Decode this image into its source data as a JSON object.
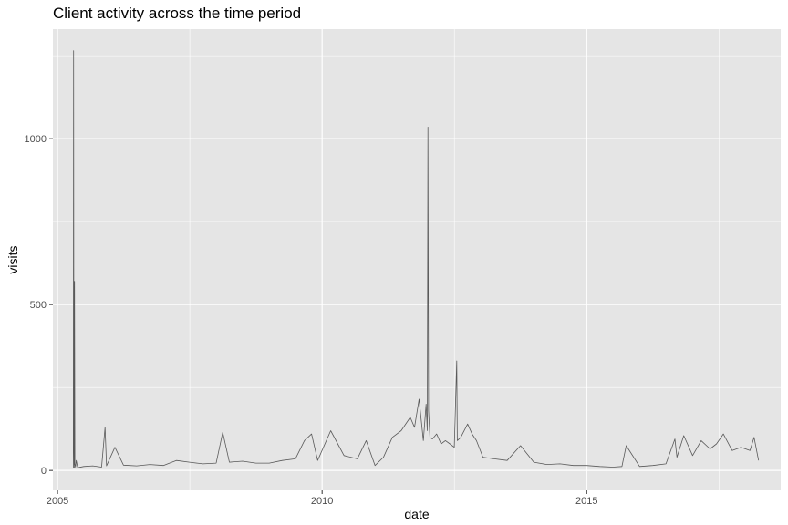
{
  "chart_data": {
    "type": "line",
    "title": "Client activity across the time period",
    "xlabel": "date",
    "ylabel": "visits",
    "xlim": [
      "2004-11-30",
      "2018-09-01"
    ],
    "ylim": [
      -60,
      1330
    ],
    "x_ticks": [
      {
        "date": "2005-01-01",
        "label": "2005"
      },
      {
        "date": "2010-01-01",
        "label": "2010"
      },
      {
        "date": "2015-01-01",
        "label": "2015"
      }
    ],
    "y_ticks": [
      {
        "value": 0,
        "label": "0"
      },
      {
        "value": 500,
        "label": "500"
      },
      {
        "value": 1000,
        "label": "1000"
      }
    ],
    "grid": true,
    "legend": "none",
    "colors": {
      "panel": "#e5e5e5",
      "grid_major": "#ffffff",
      "line": "#595959",
      "axis_text": "#4d4d4d"
    },
    "series": [
      {
        "x": [
          "2005-04-20",
          "2005-04-22",
          "2005-04-24",
          "2005-04-26",
          "2005-04-28",
          "2005-05-01",
          "2005-05-05",
          "2005-05-10",
          "2005-05-20",
          "2005-07-01",
          "2005-09-01",
          "2005-11-01",
          "2005-11-25",
          "2005-12-05",
          "2006-02-01",
          "2006-04-01",
          "2006-07-01",
          "2006-10-01",
          "2007-01-01",
          "2007-04-01",
          "2007-07-01",
          "2007-10-01",
          "2008-01-01",
          "2008-02-15",
          "2008-04-01",
          "2008-07-01",
          "2008-10-01",
          "2009-01-01",
          "2009-04-01",
          "2009-07-01",
          "2009-09-01",
          "2009-10-20",
          "2009-12-01",
          "2010-03-01",
          "2010-06-01",
          "2010-09-01",
          "2010-11-01",
          "2011-01-01",
          "2011-03-01",
          "2011-05-01",
          "2011-07-01",
          "2011-09-01",
          "2011-10-01",
          "2011-11-01",
          "2011-12-01",
          "2011-12-20",
          "2011-12-28",
          "2012-01-01",
          "2012-01-06",
          "2012-01-15",
          "2012-02-01",
          "2012-03-01",
          "2012-04-01",
          "2012-05-01",
          "2012-06-01",
          "2012-07-01",
          "2012-07-18",
          "2012-07-22",
          "2012-08-15",
          "2012-10-01",
          "2012-11-01",
          "2012-12-01",
          "2013-01-15",
          "2013-04-01",
          "2013-07-01",
          "2013-10-01",
          "2014-01-01",
          "2014-04-01",
          "2014-07-01",
          "2014-10-01",
          "2015-01-01",
          "2015-04-01",
          "2015-07-01",
          "2015-09-01",
          "2015-10-01",
          "2016-01-01",
          "2016-04-01",
          "2016-07-01",
          "2016-09-01",
          "2016-09-15",
          "2016-11-01",
          "2017-01-01",
          "2017-03-01",
          "2017-05-01",
          "2017-06-15",
          "2017-08-01",
          "2017-10-01",
          "2017-12-01",
          "2018-02-01",
          "2018-03-01",
          "2018-04-01"
        ],
        "values": [
          8,
          1265,
          110,
          8,
          570,
          20,
          10,
          30,
          8,
          12,
          14,
          10,
          130,
          14,
          70,
          16,
          14,
          18,
          15,
          30,
          25,
          20,
          22,
          115,
          25,
          28,
          22,
          22,
          30,
          35,
          90,
          110,
          30,
          120,
          45,
          35,
          90,
          15,
          40,
          100,
          120,
          160,
          130,
          215,
          90,
          200,
          120,
          1035,
          180,
          100,
          95,
          110,
          80,
          90,
          80,
          70,
          330,
          90,
          100,
          140,
          110,
          90,
          40,
          35,
          30,
          75,
          25,
          18,
          20,
          15,
          15,
          12,
          10,
          12,
          75,
          12,
          15,
          20,
          95,
          40,
          105,
          45,
          90,
          65,
          80,
          110,
          60,
          70,
          60,
          100,
          30
        ]
      }
    ]
  }
}
